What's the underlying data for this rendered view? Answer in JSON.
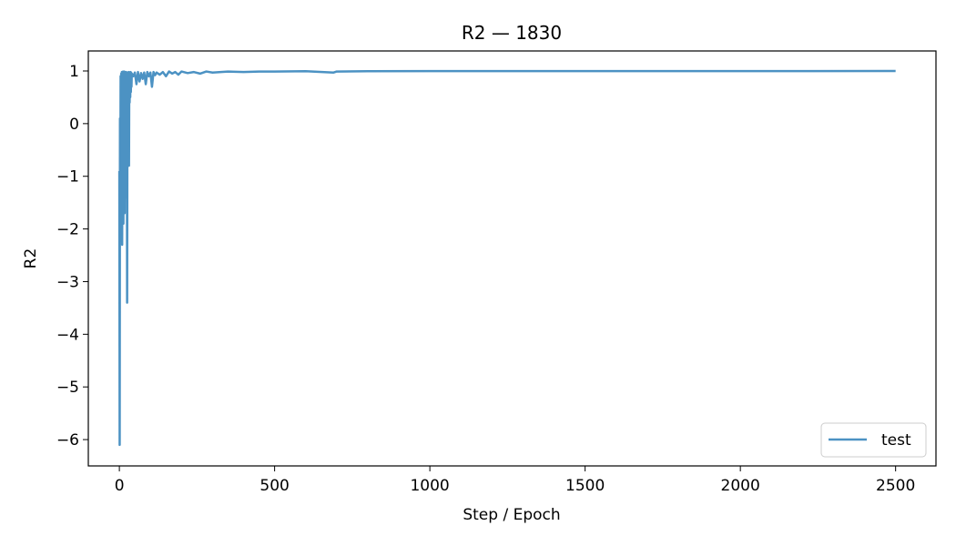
{
  "chart_data": {
    "type": "line",
    "title": "R2 — 1830",
    "xlabel": "Step / Epoch",
    "ylabel": "R2",
    "xlim": [
      -100,
      2630
    ],
    "ylim": [
      -6.5,
      1.38
    ],
    "xticks": [
      0,
      500,
      1000,
      1500,
      2000,
      2500
    ],
    "yticks": [
      -6,
      -5,
      -4,
      -3,
      -2,
      -1,
      0,
      1
    ],
    "grid": false,
    "legend_position": "lower-right",
    "series_color": "#1f77b4",
    "series": [
      {
        "name": "test",
        "x": [
          0,
          1,
          2,
          3,
          4,
          5,
          6,
          7,
          8,
          9,
          10,
          11,
          12,
          13,
          14,
          15,
          16,
          17,
          18,
          19,
          20,
          21,
          22,
          23,
          24,
          25,
          26,
          27,
          28,
          29,
          30,
          31,
          32,
          33,
          34,
          35,
          36,
          37,
          38,
          39,
          40,
          45,
          50,
          55,
          60,
          65,
          70,
          75,
          80,
          85,
          90,
          95,
          100,
          105,
          110,
          115,
          120,
          130,
          140,
          150,
          160,
          170,
          180,
          190,
          200,
          220,
          240,
          260,
          280,
          300,
          350,
          400,
          450,
          500,
          600,
          690,
          700,
          800,
          1000,
          1500,
          2000,
          2500
        ],
        "y": [
          -0.9,
          -6.1,
          0.1,
          -1.9,
          0.9,
          -0.4,
          0.95,
          -1.3,
          0.98,
          -2.3,
          0.97,
          -1.0,
          0.99,
          -1.9,
          0.96,
          -0.6,
          0.99,
          -1.7,
          0.95,
          -0.8,
          0.97,
          -1.4,
          0.98,
          -0.3,
          0.96,
          -3.4,
          0.95,
          -0.7,
          0.97,
          0.2,
          0.98,
          -0.8,
          0.96,
          0.4,
          0.97,
          0.5,
          0.98,
          0.6,
          0.97,
          0.7,
          0.95,
          0.9,
          0.97,
          0.75,
          0.98,
          0.8,
          0.96,
          0.85,
          0.97,
          0.75,
          0.98,
          0.9,
          0.97,
          0.7,
          0.98,
          0.92,
          0.97,
          0.93,
          0.98,
          0.9,
          0.99,
          0.95,
          0.98,
          0.93,
          0.99,
          0.96,
          0.98,
          0.95,
          0.99,
          0.97,
          0.99,
          0.98,
          0.99,
          0.99,
          0.995,
          0.97,
          0.99,
          0.995,
          0.997,
          0.998,
          0.998,
          0.999
        ]
      }
    ]
  }
}
